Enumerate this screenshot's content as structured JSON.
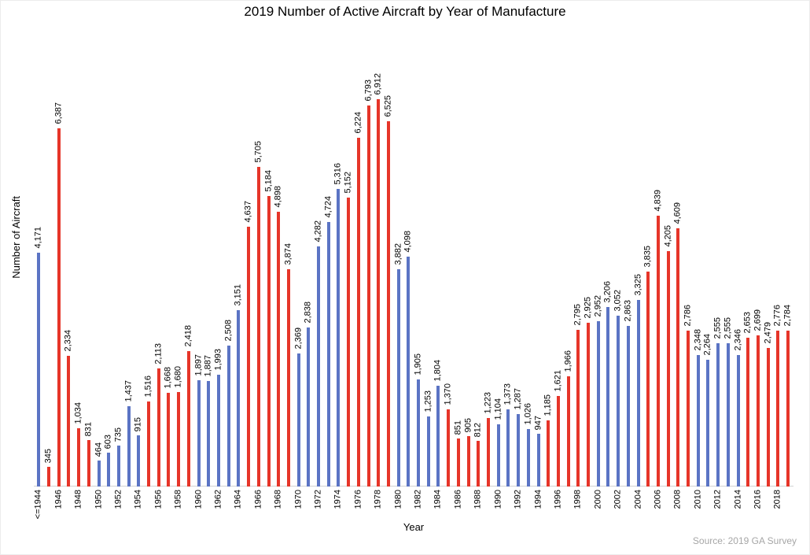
{
  "source": "Source: 2019 GA Survey",
  "colors": {
    "bar_blue": "#5B74C4",
    "bar_red": "#E63529",
    "axis_line": "#D3D3D3",
    "source_text": "#A6A6A6",
    "text": "#000000"
  },
  "chart_data": {
    "type": "bar",
    "title": "2019 Number of Active Aircraft by Year of Manufacture",
    "xlabel": "Year",
    "ylabel": "Number of Aircraft",
    "ylim": [
      0,
      7000
    ],
    "grid": false,
    "legend": "none",
    "value_label_rotation": 90,
    "tick_label_rotation": 90,
    "x_ticks_shown": "every other category starting at <=1944; last bar (2019) unlabeled",
    "categories": [
      "<=1944",
      "1945",
      "1946",
      "1947",
      "1948",
      "1949",
      "1950",
      "1951",
      "1952",
      "1953",
      "1954",
      "1955",
      "1956",
      "1957",
      "1958",
      "1959",
      "1960",
      "1961",
      "1962",
      "1963",
      "1964",
      "1965",
      "1966",
      "1967",
      "1968",
      "1969",
      "1970",
      "1971",
      "1972",
      "1973",
      "1974",
      "1975",
      "1976",
      "1977",
      "1978",
      "1979",
      "1980",
      "1981",
      "1982",
      "1983",
      "1984",
      "1985",
      "1986",
      "1987",
      "1988",
      "1989",
      "1990",
      "1991",
      "1992",
      "1993",
      "1994",
      "1995",
      "1996",
      "1997",
      "1998",
      "1999",
      "2000",
      "2001",
      "2002",
      "2003",
      "2004",
      "2005",
      "2006",
      "2007",
      "2008",
      "2009",
      "2010",
      "2011",
      "2012",
      "2013",
      "2014",
      "2015",
      "2016",
      "2017",
      "2018",
      "2019"
    ],
    "values": [
      4171,
      345,
      6387,
      2334,
      1034,
      831,
      464,
      603,
      735,
      1437,
      915,
      1516,
      2113,
      1668,
      1680,
      2418,
      1897,
      1887,
      1993,
      2508,
      3151,
      4637,
      5705,
      5184,
      4898,
      3874,
      2369,
      2838,
      4282,
      4724,
      5316,
      5152,
      6224,
      6793,
      6912,
      6525,
      3882,
      4098,
      1905,
      1253,
      1804,
      1370,
      851,
      905,
      812,
      1223,
      1104,
      1373,
      1287,
      1026,
      947,
      1185,
      1621,
      1966,
      2795,
      2925,
      2952,
      3206,
      3052,
      2863,
      3325,
      3835,
      4839,
      4205,
      4609,
      2786,
      2348,
      2264,
      2555,
      2555,
      2346,
      2653,
      2699,
      2479,
      2776,
      2784
    ],
    "value_labels": [
      "4,171",
      "345",
      "6,387",
      "2,334",
      "1,034",
      "831",
      "464",
      "603",
      "735",
      "1,437",
      "915",
      "1,516",
      "2,113",
      "1,668",
      "1,680",
      "2,418",
      "1,897",
      "1,887",
      "1,993",
      "2,508",
      "3,151",
      "4,637",
      "5,705",
      "5,184",
      "4,898",
      "3,874",
      "2,369",
      "2,838",
      "4,282",
      "4,724",
      "5,316",
      "5,152",
      "6,224",
      "6,793",
      "6,912",
      "6,525",
      "3,882",
      "4,098",
      "1,905",
      "1,253",
      "1,804",
      "1,370",
      "851",
      "905",
      "812",
      "1,223",
      "1,104",
      "1,373",
      "1,287",
      "1,026",
      "947",
      "1,185",
      "1,621",
      "1,966",
      "2,795",
      "2,925",
      "2,952",
      "3,206",
      "3,052",
      "2,863",
      "3,325",
      "3,835",
      "4,839",
      "4,205",
      "4,609",
      "2,786",
      "2,348",
      "2,264",
      "2,555",
      "2,555",
      "2,346",
      "2,653",
      "2,699",
      "2,479",
      "2,776",
      "2,784"
    ],
    "bar_colors": [
      "blue",
      "red",
      "red",
      "red",
      "red",
      "red",
      "blue",
      "blue",
      "blue",
      "blue",
      "blue",
      "red",
      "red",
      "red",
      "red",
      "red",
      "blue",
      "blue",
      "blue",
      "blue",
      "blue",
      "red",
      "red",
      "red",
      "red",
      "red",
      "blue",
      "blue",
      "blue",
      "blue",
      "blue",
      "red",
      "red",
      "red",
      "red",
      "red",
      "blue",
      "blue",
      "blue",
      "blue",
      "blue",
      "red",
      "red",
      "red",
      "red",
      "red",
      "blue",
      "blue",
      "blue",
      "blue",
      "blue",
      "red",
      "red",
      "red",
      "red",
      "red",
      "blue",
      "blue",
      "blue",
      "blue",
      "blue",
      "red",
      "red",
      "red",
      "red",
      "red",
      "blue",
      "blue",
      "blue",
      "blue",
      "blue",
      "red",
      "red",
      "red",
      "red",
      "red"
    ],
    "color_rule": "bars alternate blue/red in 5-year groups: <=1944 blue, 1945-1949 red, 1950-1954 blue, etc."
  }
}
